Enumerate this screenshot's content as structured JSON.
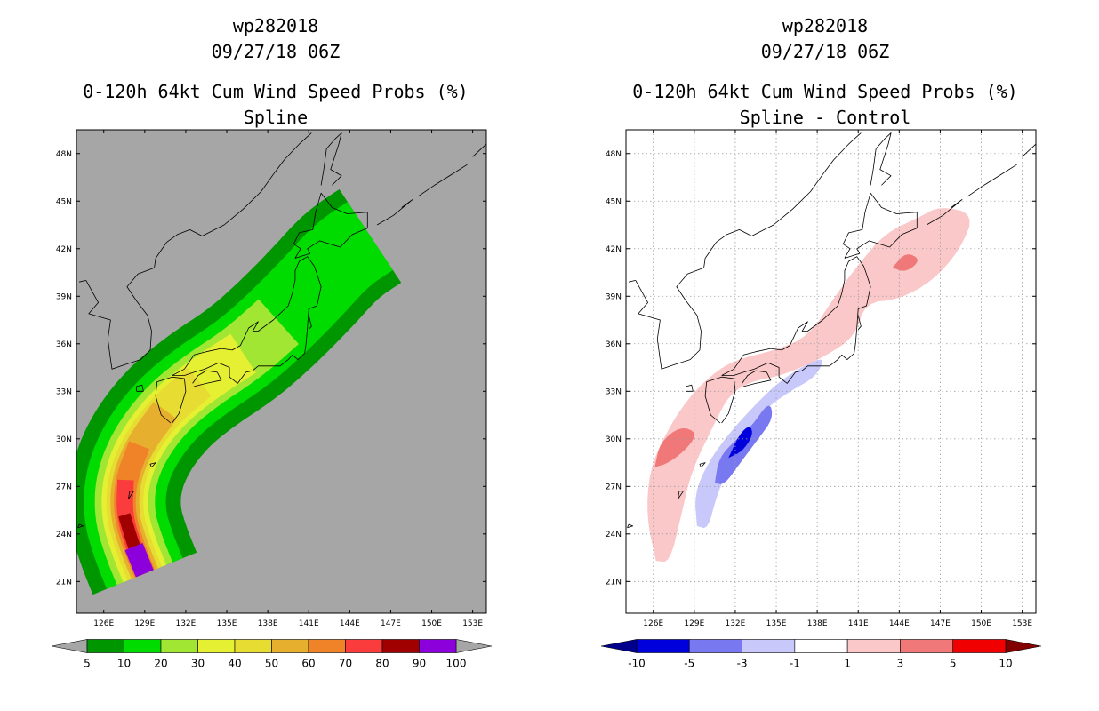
{
  "chart_data": [
    {
      "type": "heatmap",
      "name": "spline",
      "title": [
        "wp282018",
        "09/27/18 06Z",
        "0-120h 64kt Cum Wind Speed Probs (%)",
        "Spline"
      ],
      "x_ticks": [
        "126E",
        "129E",
        "132E",
        "135E",
        "138E",
        "141E",
        "144E",
        "147E",
        "150E",
        "153E"
      ],
      "y_ticks": [
        "48N",
        "45N",
        "42N",
        "39N",
        "36N",
        "33N",
        "30N",
        "27N",
        "24N",
        "21N"
      ],
      "xlim": [
        124,
        154
      ],
      "ylim": [
        19,
        49.5
      ],
      "grid": false,
      "background": "#a6a6a6",
      "colorbar": {
        "labels": [
          "5",
          "10",
          "20",
          "30",
          "40",
          "50",
          "60",
          "70",
          "80",
          "90",
          "100"
        ],
        "colors": [
          "#009600",
          "#00dc00",
          "#a0e632",
          "#e6f032",
          "#e6dc32",
          "#e6af2d",
          "#f08228",
          "#fa3c3c",
          "#a00000",
          "#8c00dc"
        ],
        "low_color": "#a6a6a6",
        "high_color": "#a6a6a6"
      },
      "swath": {
        "levels": [
          {
            "halfwidth": 4.1,
            "start": 0
          },
          {
            "halfwidth": 3.0,
            "start": 0
          },
          {
            "halfwidth": 2.2,
            "start": 0,
            "end": 8
          },
          {
            "halfwidth": 1.7,
            "start": 0,
            "end": 7
          },
          {
            "halfwidth": 1.35,
            "start": 0,
            "end": 6
          },
          {
            "halfwidth": 1.05,
            "start": 0,
            "end": 5
          },
          {
            "halfwidth": 0.8,
            "start": 0,
            "end": 4
          },
          {
            "halfwidth": 0.6,
            "start": 0,
            "end": 3
          },
          {
            "halfwidth": 0.45,
            "start": 0,
            "end": 2
          },
          {
            "halfwidth": 0.7,
            "start": 0,
            "end": 1
          }
        ]
      }
    },
    {
      "type": "heatmap",
      "name": "spline-control",
      "title": [
        "wp282018",
        "09/27/18 06Z",
        "0-120h 64kt Cum Wind Speed Probs (%)",
        "Spline - Control"
      ],
      "x_ticks": [
        "126E",
        "129E",
        "132E",
        "135E",
        "138E",
        "141E",
        "144E",
        "147E",
        "150E",
        "153E"
      ],
      "y_ticks": [
        "48N",
        "45N",
        "42N",
        "39N",
        "36N",
        "33N",
        "30N",
        "27N",
        "24N",
        "21N"
      ],
      "xlim": [
        124,
        154
      ],
      "ylim": [
        19,
        49.5
      ],
      "grid": true,
      "background": "#ffffff",
      "colorbar": {
        "labels": [
          "-10",
          "-5",
          "-3",
          "-1",
          "1",
          "3",
          "5",
          "10"
        ],
        "colors": [
          "#0000dc",
          "#7878f0",
          "#c8c8fa",
          "#ffffff",
          "#fac8c8",
          "#f07878",
          "#f00000"
        ],
        "low_color": "#00008c",
        "high_color": "#820000"
      },
      "difference_regions": [
        {
          "level": "1 to 3",
          "color": "#fac8c8",
          "polygon": [
            [
              126.2,
              22.3
            ],
            [
              125.5,
              25
            ],
            [
              125.7,
              28
            ],
            [
              127,
              30.5
            ],
            [
              128.5,
              32.5
            ],
            [
              130.2,
              34
            ],
            [
              132,
              35
            ],
            [
              135,
              35.6
            ],
            [
              137.4,
              36.5
            ],
            [
              139.3,
              39
            ],
            [
              141,
              41
            ],
            [
              143,
              43
            ],
            [
              145.5,
              44
            ],
            [
              147,
              44.7
            ],
            [
              149.5,
              44.2
            ],
            [
              148.5,
              42
            ],
            [
              146.5,
              40
            ],
            [
              144,
              38.8
            ],
            [
              141.5,
              38.6
            ],
            [
              140.8,
              36.5
            ],
            [
              138.6,
              35.2
            ],
            [
              135.5,
              34
            ],
            [
              133,
              33.6
            ],
            [
              131.5,
              32.7
            ],
            [
              130.5,
              31
            ],
            [
              128.8,
              28
            ],
            [
              128,
              25
            ],
            [
              127.2,
              22.2
            ]
          ]
        },
        {
          "level": "3 to 5",
          "color": "#f07878",
          "polygon": [
            [
              126.1,
              28.2
            ],
            [
              126.5,
              29.8
            ],
            [
              128,
              30.8
            ],
            [
              129.2,
              30.4
            ],
            [
              128.6,
              29.5
            ],
            [
              127.2,
              28.5
            ]
          ]
        },
        {
          "level": "3 to 5",
          "color": "#f07878",
          "polygon": [
            [
              143.5,
              40.8
            ],
            [
              144.5,
              41.8
            ],
            [
              145.6,
              41.3
            ],
            [
              144.5,
              40.5
            ]
          ]
        },
        {
          "level": "-3 to -1",
          "color": "#c8c8fa",
          "polygon": [
            [
              129.2,
              24.5
            ],
            [
              129,
              26.5
            ],
            [
              130,
              28.5
            ],
            [
              131.5,
              30.3
            ],
            [
              133.5,
              32.2
            ],
            [
              135.2,
              33.6
            ],
            [
              137,
              34.6
            ],
            [
              138.6,
              35.2
            ],
            [
              137.9,
              33.9
            ],
            [
              136,
              33
            ],
            [
              134.2,
              31.9
            ],
            [
              132.8,
              30.2
            ],
            [
              131.5,
              28.2
            ],
            [
              130.6,
              26.3
            ],
            [
              130,
              24.3
            ]
          ]
        },
        {
          "level": "-5 to -3",
          "color": "#7878f0",
          "polygon": [
            [
              130.5,
              27.2
            ],
            [
              130.8,
              28.8
            ],
            [
              132,
              29.9
            ],
            [
              133.2,
              30.8
            ],
            [
              134.5,
              32.4
            ],
            [
              134.8,
              31.3
            ],
            [
              133.6,
              29.9
            ],
            [
              132.3,
              28.4
            ],
            [
              131.2,
              27.1
            ]
          ]
        },
        {
          "level": "-10 to -5",
          "color": "#0000dc",
          "polygon": [
            [
              131.5,
              28.8
            ],
            [
              132.3,
              30.3
            ],
            [
              133.1,
              30.9
            ],
            [
              133.3,
              30.2
            ],
            [
              132.5,
              29.2
            ]
          ]
        }
      ]
    }
  ]
}
